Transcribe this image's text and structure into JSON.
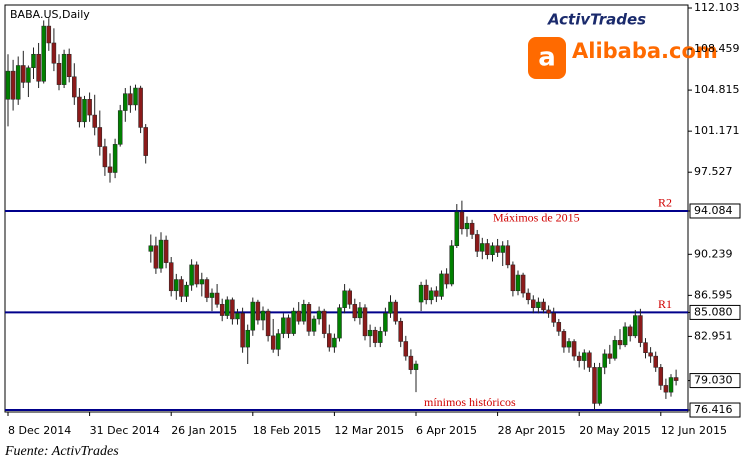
{
  "chart_data": {
    "type": "candlestick",
    "title": "BABA.US,Daily",
    "categories": [
      "8 Dec 2014",
      null,
      null,
      null,
      null,
      null,
      null,
      null,
      null,
      null,
      null,
      null,
      null,
      null,
      null,
      null,
      "31 Dec 2014",
      null,
      null,
      null,
      null,
      null,
      null,
      null,
      null,
      null,
      null,
      null,
      null,
      null,
      null,
      null,
      "26 Jan 2015",
      null,
      null,
      null,
      null,
      null,
      null,
      null,
      null,
      null,
      null,
      null,
      null,
      null,
      null,
      null,
      "18 Feb 2015",
      null,
      null,
      null,
      null,
      null,
      null,
      null,
      null,
      null,
      null,
      null,
      null,
      null,
      null,
      null,
      "12 Mar 2015",
      null,
      null,
      null,
      null,
      null,
      null,
      null,
      null,
      null,
      null,
      null,
      null,
      null,
      null,
      null,
      "6 Apr 2015",
      null,
      null,
      null,
      null,
      null,
      null,
      null,
      null,
      null,
      null,
      null,
      null,
      null,
      null,
      null,
      "28 Apr 2015",
      null,
      null,
      null,
      null,
      null,
      null,
      null,
      null,
      null,
      null,
      null,
      null,
      null,
      null,
      null,
      "20 May 2015",
      null,
      null,
      null,
      null,
      null,
      null,
      null,
      null,
      null,
      null,
      null,
      null,
      null,
      null,
      null,
      "12 Jun 2015",
      null,
      null,
      null
    ],
    "open": [
      104.0,
      106.5,
      104.0,
      107.0,
      105.5,
      106.8,
      108.0,
      105.6,
      110.5,
      109.0,
      107.2,
      105.3,
      108.0,
      106.0,
      104.2,
      102.0,
      104.0,
      102.6,
      101.5,
      99.8,
      98.0,
      97.5,
      100.0,
      103.0,
      104.5,
      103.5,
      105.0,
      101.5,
      90.5,
      91.0,
      89.0,
      91.5,
      89.5,
      87.0,
      88.0,
      86.5,
      87.5,
      89.3,
      87.6,
      88.0,
      86.4,
      86.8,
      85.8,
      84.8,
      86.2,
      84.5,
      85.0,
      82.0,
      83.5,
      86.0,
      84.4,
      85.2,
      83.0,
      81.8,
      83.2,
      84.6,
      83.2,
      85.2,
      84.3,
      85.8,
      83.4,
      84.5,
      85.2,
      83.2,
      82.0,
      82.8,
      85.5,
      87.0,
      85.8,
      84.6,
      85.5,
      83.0,
      83.5,
      82.4,
      83.4,
      85.0,
      86.0,
      84.3,
      82.5,
      81.2,
      80.0,
      86.0,
      87.5,
      86.2,
      87.0,
      86.5,
      88.5,
      87.6,
      91.0,
      94.0,
      92.5,
      93.0,
      92.0,
      90.5,
      91.2,
      90.2,
      91.0,
      90.4,
      91.0,
      89.3,
      87.0,
      88.4,
      86.8,
      86.2,
      85.5,
      86.0,
      85.3,
      85.0,
      84.2,
      83.4,
      82.0,
      82.5,
      81.2,
      80.8,
      81.5,
      80.2,
      77.0,
      80.2,
      81.4,
      81.0,
      82.6,
      82.2,
      83.8,
      83.0,
      84.8,
      82.4,
      81.5,
      81.2,
      80.2,
      78.6,
      78.0,
      79.3
    ],
    "high": [
      108.0,
      107.5,
      107.8,
      108.3,
      107.0,
      108.6,
      109.0,
      111.0,
      111.2,
      110.3,
      108.0,
      108.4,
      108.5,
      107.2,
      105.0,
      104.3,
      104.6,
      104.4,
      103.0,
      100.5,
      99.2,
      100.5,
      103.5,
      105.0,
      105.2,
      105.3,
      105.2,
      101.8,
      92.0,
      91.8,
      92.2,
      91.9,
      90.0,
      88.5,
      88.3,
      87.8,
      89.8,
      89.6,
      88.6,
      88.2,
      87.2,
      87.6,
      86.3,
      86.5,
      86.4,
      85.4,
      85.5,
      84.0,
      86.4,
      86.2,
      85.6,
      85.4,
      84.5,
      83.6,
      85.0,
      84.9,
      85.5,
      86.0,
      86.2,
      86.0,
      84.8,
      85.6,
      85.4,
      84.0,
      83.2,
      85.8,
      87.6,
      87.2,
      86.3,
      86.0,
      85.8,
      84.0,
      83.8,
      83.8,
      85.5,
      86.6,
      86.2,
      84.6,
      83.0,
      81.8,
      80.8,
      87.8,
      88.0,
      87.3,
      87.4,
      88.8,
      89.0,
      91.5,
      94.7,
      95.0,
      93.6,
      93.3,
      92.4,
      91.7,
      91.6,
      91.3,
      91.6,
      91.4,
      91.5,
      89.6,
      88.8,
      88.6,
      87.2,
      86.6,
      86.4,
      86.3,
      85.7,
      85.5,
      84.5,
      83.6,
      82.8,
      82.7,
      81.6,
      81.8,
      81.7,
      80.6,
      80.6,
      81.8,
      82.2,
      83.0,
      83.6,
      84.2,
      84.0,
      85.3,
      85.4,
      82.8,
      82.0,
      81.6,
      80.5,
      79.2,
      79.6,
      80.0
    ],
    "low": [
      101.6,
      103.0,
      103.5,
      105.0,
      104.2,
      105.8,
      105.0,
      105.4,
      108.3,
      106.5,
      104.8,
      105.0,
      105.5,
      103.5,
      101.5,
      101.5,
      102.0,
      100.8,
      99.0,
      97.2,
      96.6,
      97.0,
      99.8,
      102.0,
      102.8,
      103.0,
      101.0,
      98.3,
      89.5,
      88.5,
      88.6,
      89.0,
      86.5,
      86.2,
      86.0,
      86.0,
      87.0,
      87.3,
      86.5,
      86.0,
      85.2,
      85.5,
      84.3,
      84.5,
      84.0,
      84.0,
      81.5,
      80.5,
      83.0,
      84.0,
      83.5,
      82.5,
      81.5,
      81.2,
      82.8,
      82.8,
      83.0,
      84.0,
      84.0,
      83.0,
      83.0,
      84.0,
      82.8,
      81.6,
      81.5,
      82.5,
      85.0,
      85.4,
      84.3,
      84.0,
      82.6,
      82.0,
      82.0,
      82.0,
      83.0,
      84.6,
      84.0,
      82.0,
      80.8,
      79.6,
      78.0,
      85.2,
      85.8,
      85.8,
      86.0,
      86.2,
      87.2,
      87.4,
      90.8,
      92.0,
      91.8,
      91.6,
      90.0,
      89.8,
      89.8,
      89.6,
      90.0,
      89.2,
      89.0,
      86.5,
      86.6,
      86.4,
      85.8,
      85.0,
      85.0,
      85.0,
      84.6,
      83.8,
      83.0,
      81.5,
      81.5,
      80.8,
      80.2,
      80.0,
      79.8,
      76.4,
      76.8,
      79.6,
      80.5,
      80.8,
      81.8,
      82.0,
      82.5,
      82.8,
      82.0,
      81.0,
      80.6,
      79.8,
      78.2,
      77.4,
      77.6,
      78.6
    ],
    "close": [
      106.5,
      104.0,
      107.0,
      105.5,
      106.8,
      108.0,
      105.6,
      110.5,
      109.0,
      107.2,
      105.3,
      108.0,
      106.0,
      104.2,
      102.0,
      104.0,
      102.6,
      101.5,
      99.8,
      98.0,
      97.5,
      100.0,
      103.0,
      104.5,
      103.5,
      105.0,
      101.5,
      99.0,
      91.0,
      89.0,
      91.5,
      89.5,
      87.0,
      88.0,
      86.5,
      87.5,
      89.3,
      87.6,
      88.0,
      86.4,
      86.8,
      85.8,
      84.8,
      86.2,
      84.5,
      85.0,
      82.0,
      83.5,
      86.0,
      84.4,
      85.2,
      83.0,
      81.8,
      83.2,
      84.6,
      83.2,
      85.2,
      84.3,
      85.8,
      83.4,
      84.5,
      85.2,
      83.2,
      82.0,
      82.8,
      85.5,
      87.0,
      85.8,
      84.6,
      85.5,
      83.0,
      83.5,
      82.4,
      83.4,
      85.0,
      86.0,
      84.3,
      82.5,
      81.2,
      80.0,
      80.5,
      87.5,
      86.2,
      87.0,
      86.5,
      88.5,
      87.6,
      91.0,
      94.0,
      92.5,
      93.0,
      92.0,
      90.5,
      91.2,
      90.2,
      91.0,
      90.4,
      91.0,
      89.3,
      87.0,
      88.4,
      86.8,
      86.2,
      85.5,
      86.0,
      85.3,
      85.0,
      84.2,
      83.4,
      82.0,
      82.5,
      81.2,
      80.8,
      81.5,
      80.2,
      77.0,
      80.2,
      81.4,
      81.0,
      82.6,
      82.2,
      83.8,
      83.0,
      84.8,
      82.4,
      81.5,
      81.2,
      80.2,
      78.6,
      78.0,
      79.3,
      79.03
    ],
    "up_color": "#008000",
    "down_color": "#8b1a1a",
    "ylim": [
      76.24,
      112.37
    ],
    "yticks": [
      112.103,
      108.459,
      104.815,
      101.171,
      97.527,
      94.084,
      90.239,
      86.595,
      {
        "value": 85.08,
        "label": "85.080"
      },
      82.951,
      {
        "value": 79.03,
        "label": "79.030"
      },
      76.416
    ],
    "levels": [
      {
        "value": 94.084,
        "label": "R2",
        "note": "Máximos de 2015",
        "color": "#00008b"
      },
      {
        "value": 85.08,
        "label": "R1",
        "color": "#00008b"
      },
      {
        "value": 76.416,
        "note": "mínimos históricos",
        "color": "#00008b"
      }
    ]
  },
  "logo": {
    "brand": "ActivTrades",
    "company": "Alibaba.com"
  },
  "source": "Fuente: ActivTrades"
}
